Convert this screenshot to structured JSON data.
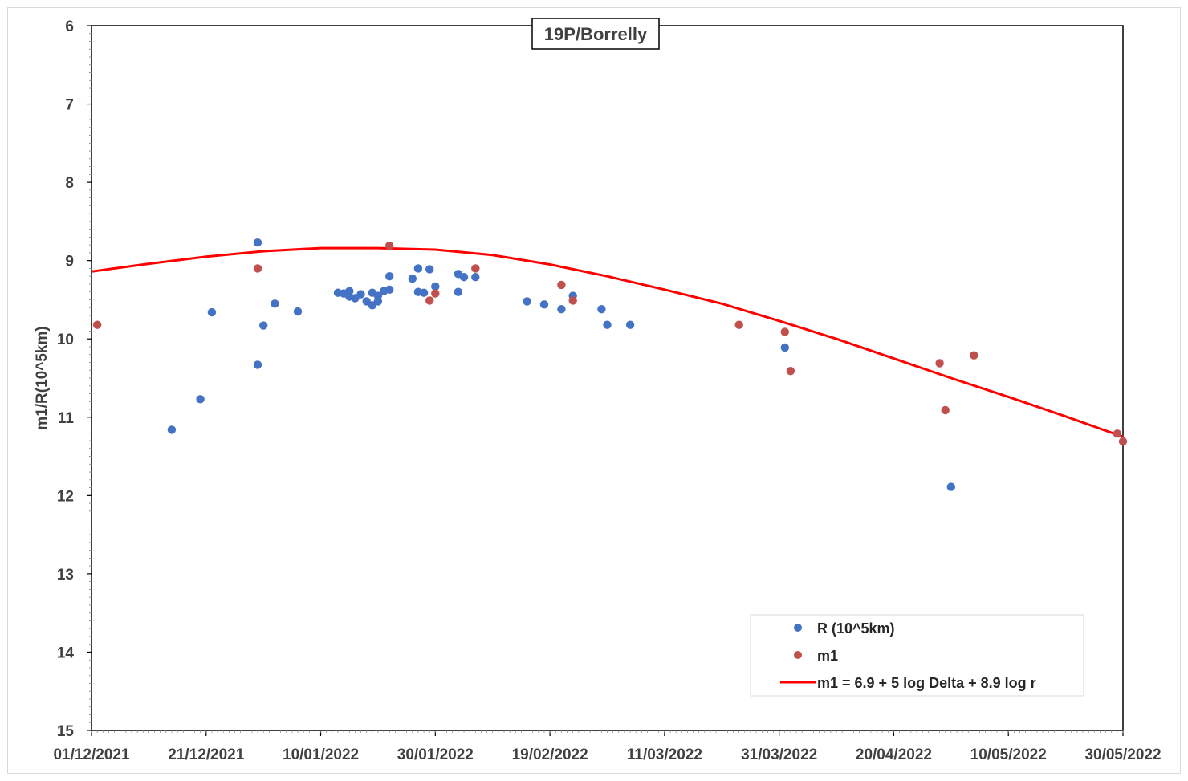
{
  "chart_data": {
    "type": "scatter",
    "title": "19P/Borrelly",
    "ylabel": "m1/R(10^5km)",
    "xlabel": "",
    "x_range": [
      "2021-12-01",
      "2022-05-30"
    ],
    "ylim": [
      6,
      15
    ],
    "y_inverted": true,
    "y_ticks": [
      6,
      7,
      8,
      9,
      10,
      11,
      12,
      13,
      14,
      15
    ],
    "x_ticks": [
      "01/12/2021",
      "21/12/2021",
      "10/01/2022",
      "30/01/2022",
      "19/02/2022",
      "11/03/2022",
      "31/03/2022",
      "20/04/2022",
      "10/05/2022",
      "30/05/2022"
    ],
    "grid": false,
    "legend_position": "bottom-right",
    "colors": {
      "R": "#4472c4",
      "m1": "#c0504d",
      "model": "#ff0000"
    },
    "series": [
      {
        "name": "R (10^5km)",
        "kind": "points",
        "points": [
          [
            "2021-12-15",
            11.16
          ],
          [
            "2021-12-20",
            10.77
          ],
          [
            "2021-12-22",
            9.66
          ],
          [
            "2021-12-30",
            8.77
          ],
          [
            "2021-12-30",
            10.33
          ],
          [
            "2021-12-31",
            9.83
          ],
          [
            "2022-01-02",
            9.55
          ],
          [
            "2022-01-06",
            9.65
          ],
          [
            "2022-01-13",
            9.41
          ],
          [
            "2022-01-14",
            9.42
          ],
          [
            "2022-01-15",
            9.39
          ],
          [
            "2022-01-15",
            9.46
          ],
          [
            "2022-01-16",
            9.48
          ],
          [
            "2022-01-17",
            9.43
          ],
          [
            "2022-01-18",
            9.52
          ],
          [
            "2022-01-19",
            9.57
          ],
          [
            "2022-01-19",
            9.41
          ],
          [
            "2022-01-20",
            9.52
          ],
          [
            "2022-01-20",
            9.45
          ],
          [
            "2022-01-21",
            9.39
          ],
          [
            "2022-01-22",
            9.37
          ],
          [
            "2022-01-22",
            9.2
          ],
          [
            "2022-01-26",
            9.23
          ],
          [
            "2022-01-27",
            9.1
          ],
          [
            "2022-01-27",
            9.4
          ],
          [
            "2022-01-28",
            9.41
          ],
          [
            "2022-01-29",
            9.11
          ],
          [
            "2022-01-30",
            9.33
          ],
          [
            "2022-02-03",
            9.4
          ],
          [
            "2022-02-03",
            9.17
          ],
          [
            "2022-02-04",
            9.21
          ],
          [
            "2022-02-06",
            9.21
          ],
          [
            "2022-02-15",
            9.52
          ],
          [
            "2022-02-18",
            9.56
          ],
          [
            "2022-02-21",
            9.62
          ],
          [
            "2022-02-23",
            9.45
          ],
          [
            "2022-02-28",
            9.62
          ],
          [
            "2022-03-01",
            9.82
          ],
          [
            "2022-03-05",
            9.82
          ],
          [
            "2022-04-01",
            10.11
          ],
          [
            "2022-04-30",
            11.89
          ]
        ]
      },
      {
        "name": "m1",
        "kind": "points",
        "points": [
          [
            "2021-12-02",
            9.82
          ],
          [
            "2021-12-30",
            9.1
          ],
          [
            "2022-01-22",
            8.81
          ],
          [
            "2022-01-29",
            9.51
          ],
          [
            "2022-01-30",
            9.42
          ],
          [
            "2022-02-06",
            9.1
          ],
          [
            "2022-02-21",
            9.31
          ],
          [
            "2022-02-23",
            9.51
          ],
          [
            "2022-03-24",
            9.82
          ],
          [
            "2022-04-01",
            9.91
          ],
          [
            "2022-04-02",
            10.41
          ],
          [
            "2022-04-28",
            10.31
          ],
          [
            "2022-04-29",
            10.91
          ],
          [
            "2022-05-04",
            10.21
          ],
          [
            "2022-05-29",
            11.21
          ],
          [
            "2022-05-30",
            11.31
          ]
        ]
      },
      {
        "name": "m1 = 6.9 + 5 log Delta + 8.9 log r",
        "kind": "line",
        "points": [
          [
            "2021-12-01",
            9.14
          ],
          [
            "2021-12-11",
            9.04
          ],
          [
            "2021-12-21",
            8.95
          ],
          [
            "2021-12-31",
            8.88
          ],
          [
            "2022-01-10",
            8.84
          ],
          [
            "2022-01-20",
            8.84
          ],
          [
            "2022-01-30",
            8.86
          ],
          [
            "2022-02-09",
            8.93
          ],
          [
            "2022-02-19",
            9.05
          ],
          [
            "2022-03-01",
            9.2
          ],
          [
            "2022-03-11",
            9.37
          ],
          [
            "2022-03-21",
            9.55
          ],
          [
            "2022-03-31",
            9.77
          ],
          [
            "2022-04-10",
            10.0
          ],
          [
            "2022-04-20",
            10.25
          ],
          [
            "2022-04-30",
            10.5
          ],
          [
            "2022-05-10",
            10.74
          ],
          [
            "2022-05-20",
            10.99
          ],
          [
            "2022-05-30",
            11.25
          ]
        ]
      }
    ]
  }
}
